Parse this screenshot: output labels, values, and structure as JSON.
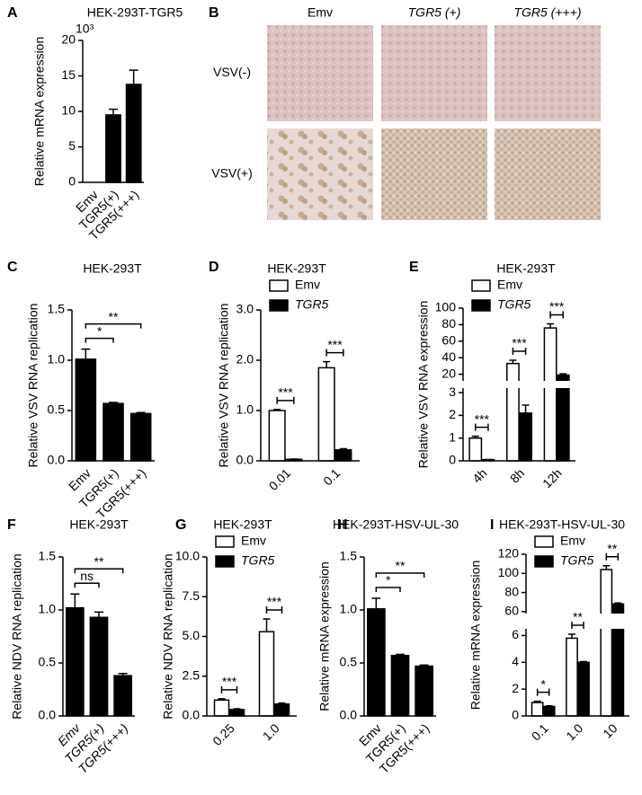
{
  "chart_data": [
    {
      "type": "bar",
      "panel": "A",
      "title": "HEK-293T-TGR5",
      "multiplier": "10³",
      "ylabel": "Relative mRNA expression",
      "categories": [
        "Emv",
        "TGR5(+)",
        "TGR5(+++)"
      ],
      "values": [
        0,
        9.5,
        13.8
      ],
      "errors": [
        0,
        0.8,
        2.0
      ],
      "color": "#000000",
      "ylim": [
        0,
        20
      ],
      "yticks": [
        0,
        5,
        10,
        15,
        20
      ]
    },
    {
      "type": "image-grid",
      "panel": "B",
      "columns": [
        "Emv",
        "TGR5 (+)",
        "TGR5 (+++)"
      ],
      "rows": [
        "VSV(-)",
        "VSV(+)"
      ]
    },
    {
      "type": "bar",
      "panel": "C",
      "title": "HEK-293T",
      "ylabel": "Relative VSV RNA replication",
      "categories": [
        "Emv",
        "TGR5(+)",
        "TGR5(+++)"
      ],
      "values": [
        1.01,
        0.57,
        0.47
      ],
      "errors": [
        0.1,
        0.01,
        0.01
      ],
      "color": "#000000",
      "ylim": [
        0,
        1.5
      ],
      "yticks": [
        {
          "value": 0,
          "label": "0.0"
        },
        0.5,
        {
          "value": 1,
          "label": "1.0"
        },
        1.5
      ],
      "annotations": [
        {
          "text": "*",
          "between": [
            0,
            1
          ]
        },
        {
          "text": "**",
          "between": [
            0,
            2
          ]
        }
      ]
    },
    {
      "type": "grouped-bar",
      "panel": "D",
      "title": "HEK-293T",
      "ylabel": "Relative VSV RNA replication",
      "categories": [
        "0.01",
        "0.1"
      ],
      "series": [
        {
          "name": "Emv",
          "color": "#ffffff",
          "values": [
            1.0,
            1.85
          ],
          "errors": [
            0.02,
            0.12
          ]
        },
        {
          "name": "TGR5",
          "color": "#000000",
          "values": [
            0.03,
            0.22
          ],
          "errors": [
            0.005,
            0.02
          ]
        }
      ],
      "ylim": [
        0,
        3
      ],
      "yticks": [
        {
          "value": 0,
          "label": "0.0"
        },
        {
          "value": 1,
          "label": "1.0"
        },
        {
          "value": 2,
          "label": "2.0"
        },
        {
          "value": 3,
          "label": "3.0"
        }
      ],
      "legend": "upper left",
      "annotations": [
        {
          "text": "***",
          "category": 0
        },
        {
          "text": "***",
          "category": 1
        }
      ]
    },
    {
      "type": "grouped-bar",
      "panel": "E",
      "title": "HEK-293T",
      "ylabel": "Relative VSV RNA expression",
      "categories": [
        "4h",
        "8h",
        "12h"
      ],
      "series": [
        {
          "name": "Emv",
          "color": "#ffffff",
          "values": [
            1.0,
            33,
            76
          ],
          "errors": [
            0.08,
            4,
            5
          ]
        },
        {
          "name": "TGR5",
          "color": "#000000",
          "values": [
            0.05,
            2.1,
            19
          ],
          "errors": [
            0.01,
            0.35,
            1.5
          ]
        }
      ],
      "ylim": [
        0,
        100
      ],
      "axis_break": [
        3.2,
        12
      ],
      "yticks": [
        0,
        1,
        2,
        3,
        20,
        40,
        60,
        80,
        100
      ],
      "legend": "upper left",
      "annotations": [
        {
          "text": "***",
          "category": 0
        },
        {
          "text": "***",
          "category": 1
        },
        {
          "text": "***",
          "category": 2
        }
      ]
    },
    {
      "type": "bar",
      "panel": "F",
      "title": "HEK-293T",
      "ylabel": "Relative NDV RNA replication",
      "categories": [
        "Emv",
        "TGR5(+)",
        "TGR5(+++)"
      ],
      "values": [
        1.02,
        0.93,
        0.38
      ],
      "errors": [
        0.13,
        0.05,
        0.02
      ],
      "color": "#000000",
      "ylim": [
        0,
        1.5
      ],
      "yticks": [
        {
          "value": 0,
          "label": "0.0"
        },
        0.5,
        {
          "value": 1,
          "label": "1.0"
        },
        1.5
      ],
      "annotations": [
        {
          "text": "ns",
          "between": [
            0,
            1
          ]
        },
        {
          "text": "**",
          "between": [
            0,
            2
          ]
        }
      ]
    },
    {
      "type": "grouped-bar",
      "panel": "G",
      "title": "HEK-293T",
      "ylabel": "Relative NDV RNA replication",
      "categories": [
        "0.25",
        "1.0"
      ],
      "series": [
        {
          "name": "Emv",
          "color": "#ffffff",
          "values": [
            1.0,
            5.3
          ],
          "errors": [
            0.08,
            0.8
          ]
        },
        {
          "name": "TGR5",
          "color": "#000000",
          "values": [
            0.4,
            0.75
          ],
          "errors": [
            0.05,
            0.06
          ]
        }
      ],
      "ylim": [
        0,
        10
      ],
      "yticks": [
        {
          "value": 0,
          "label": "0.0"
        },
        2.5,
        {
          "value": 5,
          "label": "5.0"
        },
        7.5,
        {
          "value": 10,
          "label": "10.0"
        }
      ],
      "legend": "upper left",
      "annotations": [
        {
          "text": "***",
          "category": 0
        },
        {
          "text": "***",
          "category": 1
        }
      ]
    },
    {
      "type": "bar",
      "panel": "H",
      "title": "HEK-293T-HSV-UL-30",
      "ylabel": "Relative mRNA expression",
      "categories": [
        "Emv",
        "TGR5(+)",
        "TGR5(+++)"
      ],
      "values": [
        1.01,
        0.57,
        0.47
      ],
      "errors": [
        0.1,
        0.01,
        0.01
      ],
      "color": "#000000",
      "ylim": [
        0,
        1.5
      ],
      "yticks": [
        {
          "value": 0,
          "label": "0.0"
        },
        0.5,
        {
          "value": 1,
          "label": "1.0"
        },
        1.5
      ],
      "annotations": [
        {
          "text": "*",
          "between": [
            0,
            1
          ]
        },
        {
          "text": "**",
          "between": [
            0,
            2
          ]
        }
      ]
    },
    {
      "type": "grouped-bar",
      "panel": "I",
      "title": "HEK-293T-HSV-UL-30",
      "ylabel": "Relative mRNA expression",
      "categories": [
        "0.1",
        "1.0",
        "10"
      ],
      "series": [
        {
          "name": "Emv",
          "color": "#ffffff",
          "values": [
            1.0,
            5.8,
            104
          ],
          "errors": [
            0.1,
            0.3,
            4
          ]
        },
        {
          "name": "TGR5",
          "color": "#000000",
          "values": [
            0.7,
            4.0,
            68
          ],
          "errors": [
            0.05,
            0.05,
            1
          ]
        }
      ],
      "ylim": [
        0,
        120
      ],
      "axis_break": [
        6.5,
        58
      ],
      "yticks": [
        0,
        2,
        4,
        6,
        60,
        80,
        100,
        120
      ],
      "legend": "upper left",
      "annotations": [
        {
          "text": "*",
          "category": 0
        },
        {
          "text": "**",
          "category": 1
        },
        {
          "text": "**",
          "category": 2
        }
      ]
    }
  ]
}
